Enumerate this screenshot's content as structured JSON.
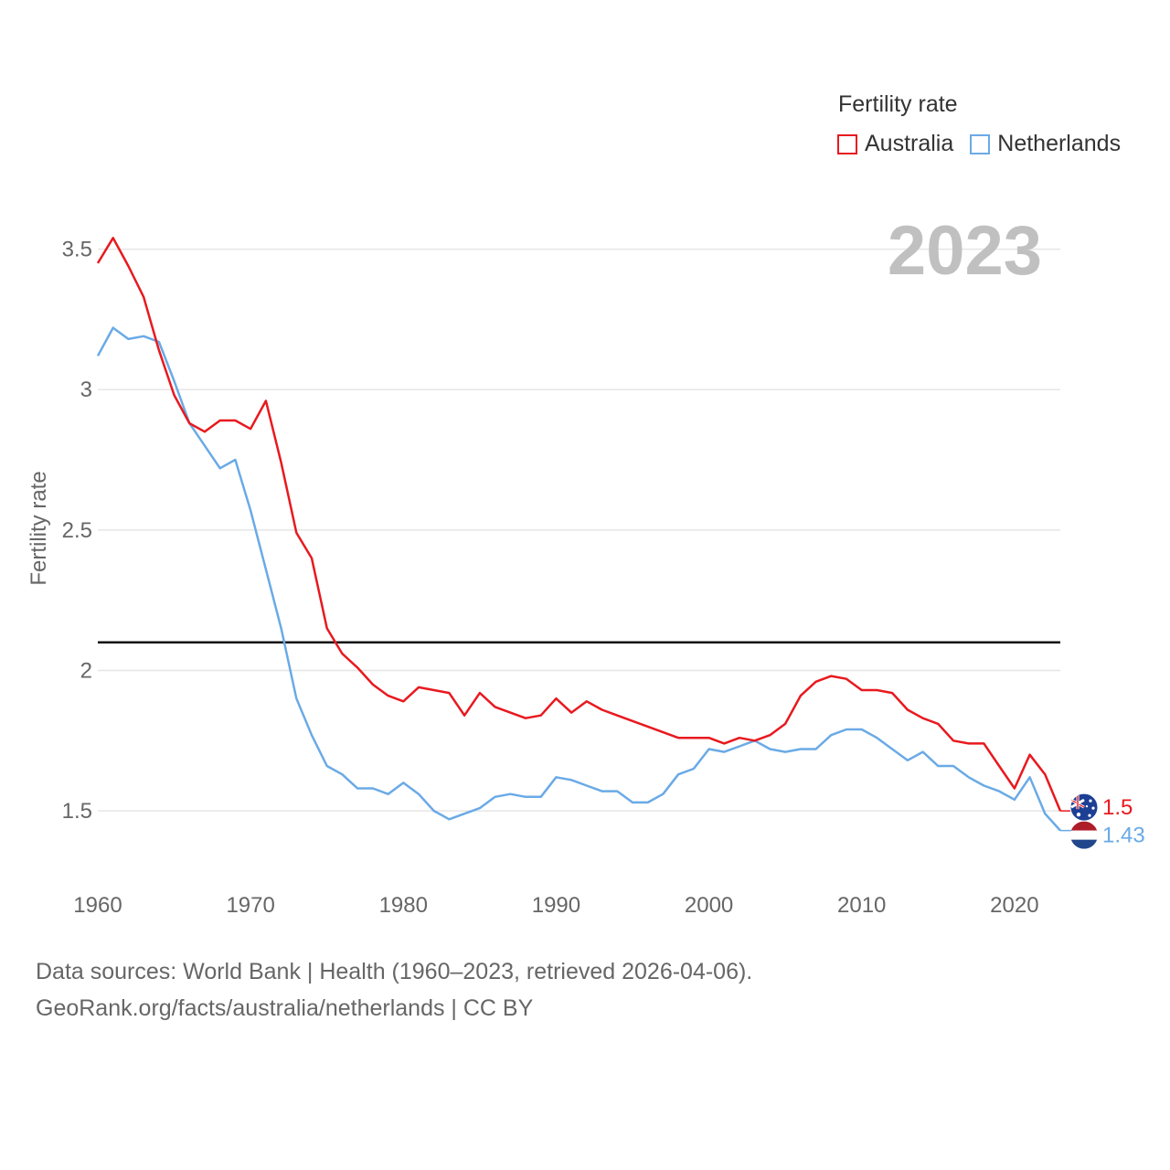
{
  "legend": {
    "title": "Fertility rate",
    "series": [
      {
        "name": "Australia",
        "color": "#e8191f"
      },
      {
        "name": "Netherlands",
        "color": "#6aaae6"
      }
    ]
  },
  "footer": {
    "line1": "Data sources: World Bank | Health (1960–2023, retrieved 2026-04-06).",
    "line2": "GeoRank.org/facts/australia/netherlands | CC BY"
  },
  "chart_data": {
    "type": "line",
    "title": "Fertility rate",
    "current_year": "2023",
    "ylabel": "Fertility rate",
    "xlabel": "",
    "xlim": [
      1960,
      2023
    ],
    "ylim": [
      1.38,
      3.58
    ],
    "x_ticks": [
      1960,
      1970,
      1980,
      1990,
      2000,
      2010,
      2020
    ],
    "y_ticks": [
      {
        "value": 1.5,
        "label": "1.5"
      },
      {
        "value": 2,
        "label": "2"
      },
      {
        "value": 2.5,
        "label": "2.5"
      },
      {
        "value": 3,
        "label": "3"
      },
      {
        "value": 3.5,
        "label": "3.5"
      }
    ],
    "reference_line": {
      "value": 2.1,
      "color": "#111111"
    },
    "x": [
      1960,
      1961,
      1962,
      1963,
      1964,
      1965,
      1966,
      1967,
      1968,
      1969,
      1970,
      1971,
      1972,
      1973,
      1974,
      1975,
      1976,
      1977,
      1978,
      1979,
      1980,
      1981,
      1982,
      1983,
      1984,
      1985,
      1986,
      1987,
      1988,
      1989,
      1990,
      1991,
      1992,
      1993,
      1994,
      1995,
      1996,
      1997,
      1998,
      1999,
      2000,
      2001,
      2002,
      2003,
      2004,
      2005,
      2006,
      2007,
      2008,
      2009,
      2010,
      2011,
      2012,
      2013,
      2014,
      2015,
      2016,
      2017,
      2018,
      2019,
      2020,
      2021,
      2022,
      2023
    ],
    "series": [
      {
        "name": "Australia",
        "color": "#e8191f",
        "end_label": "1.5",
        "flag": "australia-flag",
        "values": [
          3.45,
          3.54,
          3.44,
          3.33,
          3.14,
          2.98,
          2.88,
          2.85,
          2.89,
          2.89,
          2.86,
          2.96,
          2.74,
          2.49,
          2.4,
          2.15,
          2.06,
          2.01,
          1.95,
          1.91,
          1.89,
          1.94,
          1.93,
          1.92,
          1.84,
          1.92,
          1.87,
          1.85,
          1.83,
          1.84,
          1.9,
          1.85,
          1.89,
          1.86,
          1.84,
          1.82,
          1.8,
          1.78,
          1.76,
          1.76,
          1.76,
          1.74,
          1.76,
          1.75,
          1.77,
          1.81,
          1.91,
          1.96,
          1.98,
          1.97,
          1.93,
          1.93,
          1.92,
          1.86,
          1.83,
          1.81,
          1.75,
          1.74,
          1.74,
          1.66,
          1.58,
          1.7,
          1.63,
          1.5
        ]
      },
      {
        "name": "Netherlands",
        "color": "#6aaae6",
        "end_label": "1.43",
        "flag": "netherlands-flag",
        "values": [
          3.12,
          3.22,
          3.18,
          3.19,
          3.17,
          3.03,
          2.88,
          2.8,
          2.72,
          2.75,
          2.57,
          2.36,
          2.15,
          1.9,
          1.77,
          1.66,
          1.63,
          1.58,
          1.58,
          1.56,
          1.6,
          1.56,
          1.5,
          1.47,
          1.49,
          1.51,
          1.55,
          1.56,
          1.55,
          1.55,
          1.62,
          1.61,
          1.59,
          1.57,
          1.57,
          1.53,
          1.53,
          1.56,
          1.63,
          1.65,
          1.72,
          1.71,
          1.73,
          1.75,
          1.72,
          1.71,
          1.72,
          1.72,
          1.77,
          1.79,
          1.79,
          1.76,
          1.72,
          1.68,
          1.71,
          1.66,
          1.66,
          1.62,
          1.59,
          1.57,
          1.54,
          1.62,
          1.49,
          1.43
        ]
      }
    ]
  }
}
